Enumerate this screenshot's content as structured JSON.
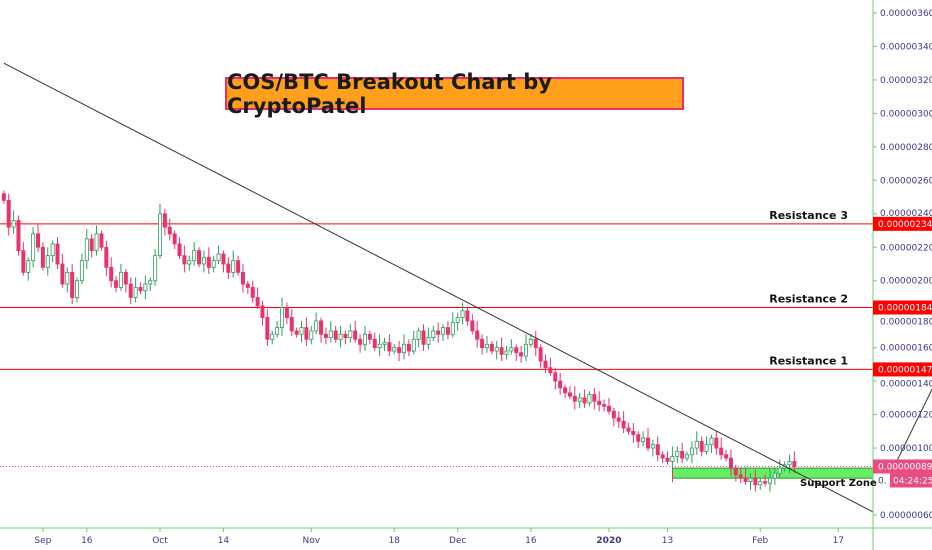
{
  "chart_data": {
    "type": "candlestick",
    "title": "COS/BTC Breakout Chart by CryptoPatel",
    "ylim": [
      5e-07,
      3.7e-06
    ],
    "price_unit": "1e-8 BTC",
    "y_ticks": [
      "0.00000060",
      "0.00000100",
      "0.00000120",
      "0.00000140",
      "0.00000160",
      "0.00000180",
      "0.00000200",
      "0.00000220",
      "0.00000240",
      "0.00000260",
      "0.00000280",
      "0.00000300",
      "0.00000320",
      "0.00000340",
      "0.00000360"
    ],
    "y_tick_values": [
      60,
      100,
      120,
      140,
      160,
      180,
      200,
      220,
      240,
      260,
      280,
      300,
      320,
      340,
      360
    ],
    "x_ticks": [
      {
        "label": "Sep",
        "day": -24
      },
      {
        "label": "16",
        "day": -15
      },
      {
        "label": "Oct",
        "day": 0
      },
      {
        "label": "14",
        "day": 13
      },
      {
        "label": "Nov",
        "day": 31
      },
      {
        "label": "18",
        "day": 48
      },
      {
        "label": "Dec",
        "day": 61
      },
      {
        "label": "16",
        "day": 76
      },
      {
        "label": "2020",
        "day": 92
      },
      {
        "label": "13",
        "day": 104
      },
      {
        "label": "Feb",
        "day": 123
      },
      {
        "label": "17",
        "day": 139
      }
    ],
    "first_candle_day": -32,
    "open_first": 252,
    "closes": [
      248,
      232,
      236,
      218,
      205,
      212,
      228,
      220,
      208,
      215,
      222,
      210,
      198,
      205,
      190,
      200,
      212,
      225,
      218,
      228,
      220,
      208,
      200,
      196,
      205,
      198,
      190,
      196,
      194,
      198,
      200,
      215,
      240,
      232,
      228,
      222,
      215,
      210,
      212,
      218,
      210,
      214,
      208,
      212,
      216,
      210,
      205,
      212,
      205,
      198,
      196,
      190,
      185,
      178,
      165,
      168,
      172,
      184,
      178,
      170,
      168,
      172,
      165,
      170,
      176,
      168,
      166,
      170,
      165,
      168,
      166,
      170,
      165,
      162,
      168,
      165,
      160,
      162,
      163,
      158,
      160,
      157,
      162,
      158,
      165,
      170,
      162,
      166,
      170,
      168,
      172,
      168,
      175,
      178,
      182,
      176,
      170,
      165,
      160,
      162,
      158,
      160,
      156,
      158,
      160,
      157,
      155,
      162,
      165,
      160,
      152,
      148,
      145,
      140,
      136,
      133,
      131,
      128,
      130,
      127,
      132,
      128,
      126,
      125,
      122,
      118,
      116,
      112,
      110,
      108,
      104,
      106,
      100,
      102,
      96,
      94,
      92,
      95,
      98,
      94,
      96,
      100,
      104,
      98,
      102,
      106,
      100,
      96,
      94,
      88,
      84,
      82,
      80,
      82,
      78,
      80,
      79,
      82,
      85,
      88,
      90,
      92,
      89
    ],
    "levels": [
      {
        "name": "Resistance 3",
        "value": 234,
        "label": "0.00000234"
      },
      {
        "name": "Resistance 2",
        "value": 184,
        "label": "0.00000184"
      },
      {
        "name": "Resistance 1",
        "value": 147,
        "label": "0.00000147"
      }
    ],
    "current_price": {
      "value": 89,
      "label": "0.00000089"
    },
    "countdown": {
      "prefix": "0.",
      "value": "04:24:25"
    },
    "support_zone": {
      "label": "Support Zone",
      "from_day": 104,
      "low": 82,
      "high": 88
    },
    "trendline": {
      "from": {
        "day": -32,
        "value": 330
      },
      "to": {
        "day": 146,
        "value": 62
      }
    },
    "projection_arrow": {
      "from": {
        "day": 150,
        "value": 90
      },
      "to": {
        "day": 159,
        "value": 146
      }
    },
    "colors": {
      "up": "#2e9e5b",
      "down": "#e8336f",
      "level": "#ff0000",
      "price_label": "#ea4c82",
      "zone": "#66ee66",
      "axis": "#6fcf6f"
    }
  }
}
